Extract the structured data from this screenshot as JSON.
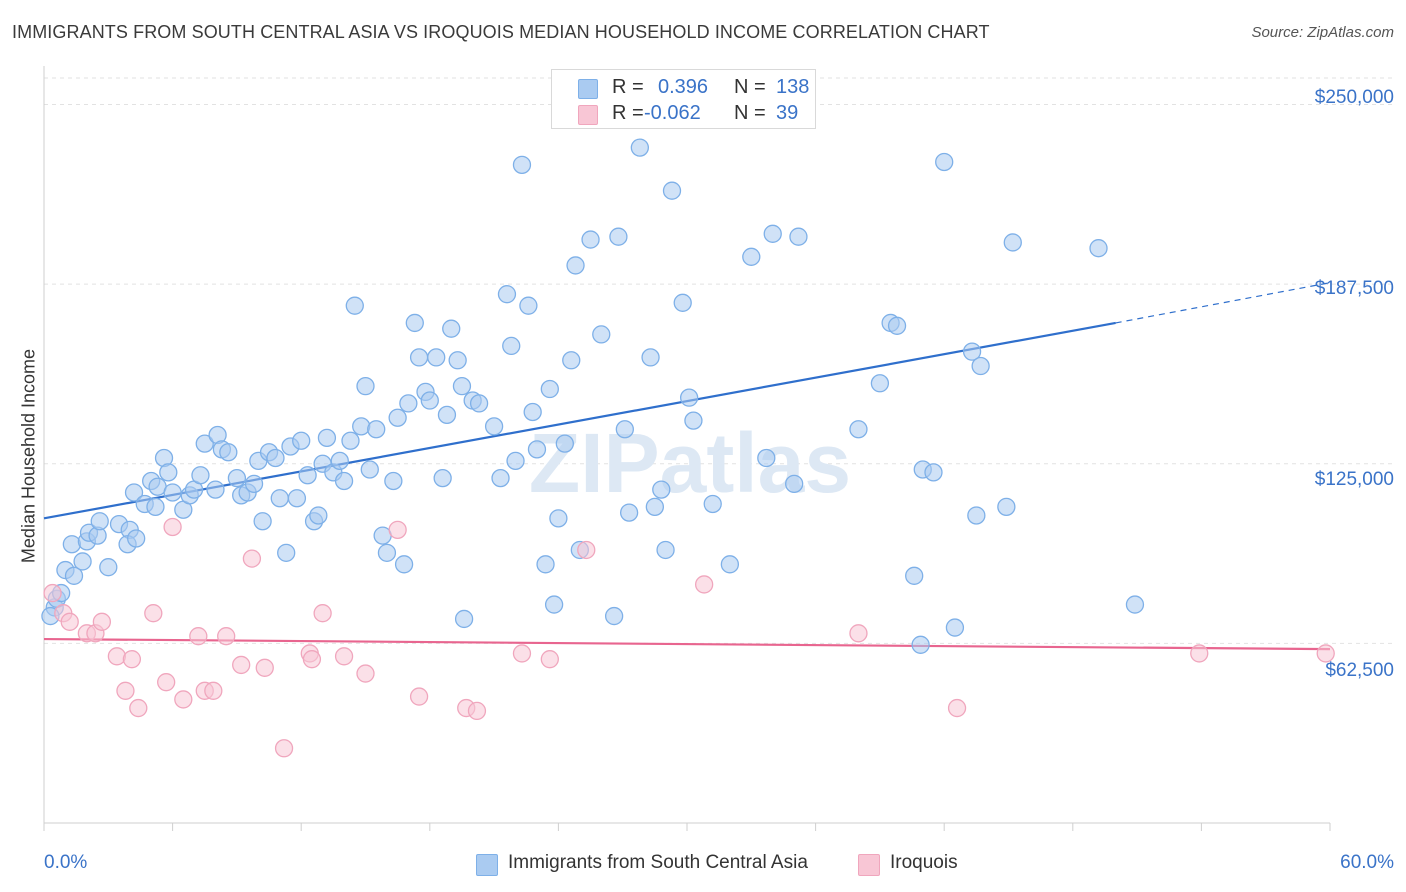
{
  "chart_data": {
    "type": "scatter",
    "title": "IMMIGRANTS FROM SOUTH CENTRAL ASIA VS IROQUOIS MEDIAN HOUSEHOLD INCOME CORRELATION CHART",
    "source": "Source: ZipAtlas.com",
    "watermark": "ZIPatlas",
    "ylabel": "Median Household Income",
    "xlim": [
      0,
      60
    ],
    "ylim": [
      0,
      262000
    ],
    "x_tick_labels": [
      "0.0%",
      "60.0%"
    ],
    "y_ticks": [
      {
        "value": 62500,
        "label": "$62,500"
      },
      {
        "value": 125000,
        "label": "$125,000"
      },
      {
        "value": 187500,
        "label": "$187,500"
      },
      {
        "value": 250000,
        "label": "$250,000"
      }
    ],
    "legend": [
      {
        "r_label": "R =",
        "r_value": "0.396",
        "n_label": "N =",
        "n_value": "138"
      },
      {
        "r_label": "R =",
        "r_value": "-0.062",
        "n_label": "N =",
        "n_value": "39"
      }
    ],
    "series": [
      {
        "name": "Immigrants from South Central Asia",
        "color": "#7eb0e8",
        "fill": "#aacbf1",
        "trend_color": "#2f6fcc",
        "trend": {
          "x0": 0,
          "y0": 106000,
          "x1": 50,
          "y1": 174000,
          "dash_to_x": 60,
          "dash_to_y": 188000
        },
        "points": [
          [
            0.5,
            75000
          ],
          [
            0.3,
            72000
          ],
          [
            0.6,
            78000
          ],
          [
            0.8,
            80000
          ],
          [
            1.0,
            88000
          ],
          [
            1.4,
            86000
          ],
          [
            1.3,
            97000
          ],
          [
            2.0,
            98000
          ],
          [
            1.8,
            91000
          ],
          [
            2.1,
            101000
          ],
          [
            2.5,
            100000
          ],
          [
            3.0,
            89000
          ],
          [
            2.6,
            105000
          ],
          [
            3.5,
            104000
          ],
          [
            4.0,
            102000
          ],
          [
            3.9,
            97000
          ],
          [
            4.2,
            115000
          ],
          [
            4.3,
            99000
          ],
          [
            4.7,
            111000
          ],
          [
            5.0,
            119000
          ],
          [
            5.2,
            110000
          ],
          [
            5.3,
            117000
          ],
          [
            5.6,
            127000
          ],
          [
            5.8,
            122000
          ],
          [
            6.0,
            115000
          ],
          [
            6.5,
            109000
          ],
          [
            6.8,
            114000
          ],
          [
            7.0,
            116000
          ],
          [
            7.3,
            121000
          ],
          [
            7.5,
            132000
          ],
          [
            8.0,
            116000
          ],
          [
            8.1,
            135000
          ],
          [
            8.3,
            130000
          ],
          [
            8.6,
            129000
          ],
          [
            9.0,
            120000
          ],
          [
            9.2,
            114000
          ],
          [
            9.5,
            115000
          ],
          [
            9.8,
            118000
          ],
          [
            10.0,
            126000
          ],
          [
            10.2,
            105000
          ],
          [
            10.5,
            129000
          ],
          [
            10.8,
            127000
          ],
          [
            11.0,
            113000
          ],
          [
            11.3,
            94000
          ],
          [
            11.5,
            131000
          ],
          [
            11.8,
            113000
          ],
          [
            12.0,
            133000
          ],
          [
            12.3,
            121000
          ],
          [
            12.6,
            105000
          ],
          [
            12.8,
            107000
          ],
          [
            13.0,
            125000
          ],
          [
            13.2,
            134000
          ],
          [
            13.5,
            122000
          ],
          [
            13.8,
            126000
          ],
          [
            14.0,
            119000
          ],
          [
            14.3,
            133000
          ],
          [
            14.5,
            180000
          ],
          [
            14.8,
            138000
          ],
          [
            15.0,
            152000
          ],
          [
            15.2,
            123000
          ],
          [
            15.5,
            137000
          ],
          [
            15.8,
            100000
          ],
          [
            16.0,
            94000
          ],
          [
            16.3,
            119000
          ],
          [
            16.5,
            141000
          ],
          [
            16.8,
            90000
          ],
          [
            17.0,
            146000
          ],
          [
            17.3,
            174000
          ],
          [
            17.5,
            162000
          ],
          [
            17.8,
            150000
          ],
          [
            18.0,
            147000
          ],
          [
            18.3,
            162000
          ],
          [
            18.6,
            120000
          ],
          [
            18.8,
            142000
          ],
          [
            19.0,
            172000
          ],
          [
            19.3,
            161000
          ],
          [
            19.5,
            152000
          ],
          [
            19.6,
            71000
          ],
          [
            20.0,
            147000
          ],
          [
            20.3,
            146000
          ],
          [
            21.0,
            138000
          ],
          [
            21.3,
            120000
          ],
          [
            21.6,
            184000
          ],
          [
            21.8,
            166000
          ],
          [
            22.0,
            126000
          ],
          [
            22.3,
            229000
          ],
          [
            22.6,
            180000
          ],
          [
            22.8,
            143000
          ],
          [
            23.0,
            130000
          ],
          [
            23.4,
            90000
          ],
          [
            23.6,
            151000
          ],
          [
            23.8,
            76000
          ],
          [
            24.0,
            106000
          ],
          [
            24.3,
            132000
          ],
          [
            24.6,
            161000
          ],
          [
            24.8,
            194000
          ],
          [
            25.0,
            95000
          ],
          [
            25.5,
            203000
          ],
          [
            26.0,
            170000
          ],
          [
            26.6,
            72000
          ],
          [
            26.8,
            204000
          ],
          [
            27.1,
            137000
          ],
          [
            27.3,
            108000
          ],
          [
            27.8,
            235000
          ],
          [
            28.3,
            162000
          ],
          [
            28.5,
            110000
          ],
          [
            28.8,
            116000
          ],
          [
            29.0,
            95000
          ],
          [
            29.3,
            220000
          ],
          [
            29.8,
            181000
          ],
          [
            30.1,
            148000
          ],
          [
            30.3,
            140000
          ],
          [
            31.2,
            111000
          ],
          [
            32.0,
            90000
          ],
          [
            33.0,
            197000
          ],
          [
            33.7,
            127000
          ],
          [
            34.0,
            205000
          ],
          [
            35.0,
            118000
          ],
          [
            35.2,
            204000
          ],
          [
            38.0,
            137000
          ],
          [
            39.0,
            153000
          ],
          [
            39.5,
            174000
          ],
          [
            39.8,
            173000
          ],
          [
            40.6,
            86000
          ],
          [
            40.9,
            62000
          ],
          [
            41.0,
            123000
          ],
          [
            41.5,
            122000
          ],
          [
            42.0,
            230000
          ],
          [
            42.5,
            68000
          ],
          [
            43.3,
            164000
          ],
          [
            43.5,
            107000
          ],
          [
            43.7,
            159000
          ],
          [
            44.9,
            110000
          ],
          [
            45.2,
            202000
          ],
          [
            49.2,
            200000
          ],
          [
            50.9,
            76000
          ]
        ]
      },
      {
        "name": "Iroquois",
        "color": "#f0a6bd",
        "fill": "#f8c6d5",
        "trend_color": "#e8658f",
        "trend": {
          "x0": 0,
          "y0": 64000,
          "x1": 60,
          "y1": 60500
        },
        "points": [
          [
            0.4,
            80000
          ],
          [
            0.9,
            73000
          ],
          [
            1.2,
            70000
          ],
          [
            2.0,
            66000
          ],
          [
            2.4,
            66000
          ],
          [
            2.7,
            70000
          ],
          [
            3.4,
            58000
          ],
          [
            3.8,
            46000
          ],
          [
            4.1,
            57000
          ],
          [
            4.4,
            40000
          ],
          [
            5.1,
            73000
          ],
          [
            5.7,
            49000
          ],
          [
            6.0,
            103000
          ],
          [
            6.5,
            43000
          ],
          [
            7.2,
            65000
          ],
          [
            7.5,
            46000
          ],
          [
            7.9,
            46000
          ],
          [
            8.5,
            65000
          ],
          [
            9.2,
            55000
          ],
          [
            9.7,
            92000
          ],
          [
            10.3,
            54000
          ],
          [
            11.2,
            26000
          ],
          [
            12.4,
            59000
          ],
          [
            12.5,
            57000
          ],
          [
            13.0,
            73000
          ],
          [
            14.0,
            58000
          ],
          [
            15.0,
            52000
          ],
          [
            16.5,
            102000
          ],
          [
            17.5,
            44000
          ],
          [
            19.7,
            40000
          ],
          [
            20.2,
            39000
          ],
          [
            22.3,
            59000
          ],
          [
            23.6,
            57000
          ],
          [
            25.3,
            95000
          ],
          [
            30.8,
            83000
          ],
          [
            38.0,
            66000
          ],
          [
            42.6,
            40000
          ],
          [
            53.9,
            59000
          ],
          [
            59.8,
            59000
          ]
        ]
      }
    ]
  }
}
